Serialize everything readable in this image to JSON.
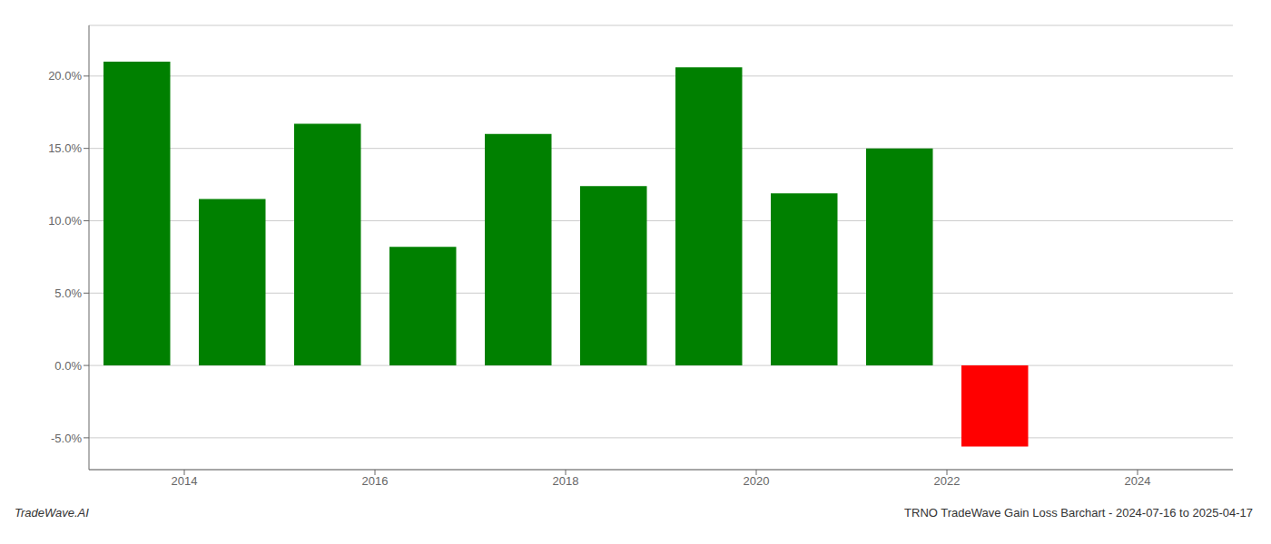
{
  "chart_data": {
    "type": "bar",
    "x": [
      2013.5,
      2014.5,
      2015.5,
      2016.5,
      2017.5,
      2018.5,
      2019.5,
      2020.5,
      2021.5,
      2022.5
    ],
    "values": [
      0.21,
      0.115,
      0.167,
      0.082,
      0.16,
      0.124,
      0.206,
      0.119,
      0.15,
      -0.056
    ],
    "colors": [
      "#008000",
      "#008000",
      "#008000",
      "#008000",
      "#008000",
      "#008000",
      "#008000",
      "#008000",
      "#008000",
      "#ff0000"
    ],
    "xlim": [
      2013.0,
      2025.0
    ],
    "xticks": [
      2014,
      2016,
      2018,
      2020,
      2022,
      2024
    ],
    "ylim": [
      -0.072,
      0.235
    ],
    "yticks": [
      {
        "value": -0.05,
        "label": "-5.0%"
      },
      {
        "value": 0.0,
        "label": "0.0%"
      },
      {
        "value": 0.05,
        "label": "5.0%"
      },
      {
        "value": 0.1,
        "label": "10.0%"
      },
      {
        "value": 0.15,
        "label": "15.0%"
      },
      {
        "value": 0.2,
        "label": "20.0%"
      }
    ],
    "grid": true,
    "annotations": [
      "TradeWave.AI",
      "TRNO TradeWave Gain Loss Barchart - 2024-07-16 to 2025-04-17"
    ]
  }
}
